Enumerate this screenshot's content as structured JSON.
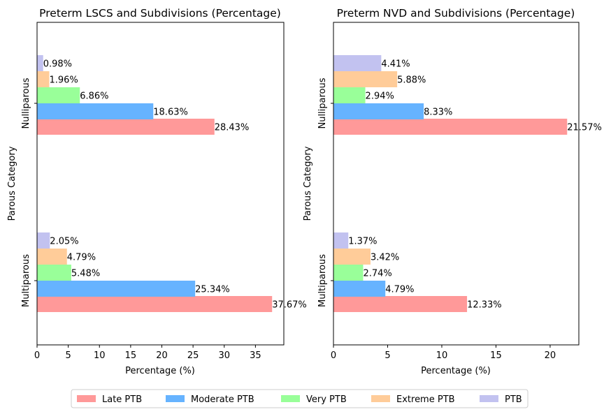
{
  "chart_data": [
    {
      "type": "bar",
      "orientation": "horizontal",
      "title": "Preterm LSCS and Subdivisions (Percentage)",
      "xlabel": "Percentage (%)",
      "ylabel": "Parous Category",
      "categories": [
        "Multiparous",
        "Nulliparous"
      ],
      "xlim": [
        0,
        39.55
      ],
      "xticks": [
        0,
        5,
        10,
        15,
        20,
        25,
        30,
        35
      ],
      "series": [
        {
          "name": "Late PTB",
          "values": [
            37.67,
            28.43
          ],
          "labels": [
            "37.67%",
            "28.43%"
          ]
        },
        {
          "name": "Moderate PTB",
          "values": [
            25.34,
            18.63
          ],
          "labels": [
            "25.34%",
            "18.63%"
          ]
        },
        {
          "name": "Very PTB",
          "values": [
            5.48,
            6.86
          ],
          "labels": [
            "5.48%",
            "6.86%"
          ]
        },
        {
          "name": "Extreme PTB",
          "values": [
            4.79,
            1.96
          ],
          "labels": [
            "4.79%",
            "1.96%"
          ]
        },
        {
          "name": "PTB",
          "values": [
            2.05,
            0.98
          ],
          "labels": [
            "2.05%",
            "0.98%"
          ]
        }
      ]
    },
    {
      "type": "bar",
      "orientation": "horizontal",
      "title": "Preterm NVD and Subdivisions (Percentage)",
      "xlabel": "Percentage (%)",
      "ylabel": "Parous Category",
      "categories": [
        "Multiparous",
        "Nulliparous"
      ],
      "xlim": [
        0,
        22.65
      ],
      "xticks": [
        0,
        5,
        10,
        15,
        20
      ],
      "series": [
        {
          "name": "Late PTB",
          "values": [
            12.33,
            21.57
          ],
          "labels": [
            "12.33%",
            "21.57%"
          ]
        },
        {
          "name": "Moderate PTB",
          "values": [
            4.79,
            8.33
          ],
          "labels": [
            "4.79%",
            "8.33%"
          ]
        },
        {
          "name": "Very PTB",
          "values": [
            2.74,
            2.94
          ],
          "labels": [
            "2.74%",
            "2.94%"
          ]
        },
        {
          "name": "Extreme PTB",
          "values": [
            3.42,
            5.88
          ],
          "labels": [
            "3.42%",
            "5.88%"
          ]
        },
        {
          "name": "PTB",
          "values": [
            1.37,
            4.41
          ],
          "labels": [
            "1.37%",
            "4.41%"
          ]
        }
      ]
    }
  ],
  "legend": {
    "placement": "bottom-center",
    "items": [
      {
        "label": "Late PTB",
        "color": "#ff9999"
      },
      {
        "label": "Moderate PTB",
        "color": "#66b3ff"
      },
      {
        "label": "Very PTB",
        "color": "#99ff99"
      },
      {
        "label": "Extreme PTB",
        "color": "#ffcc99"
      },
      {
        "label": "PTB",
        "color": "#c2c2f0"
      }
    ]
  }
}
